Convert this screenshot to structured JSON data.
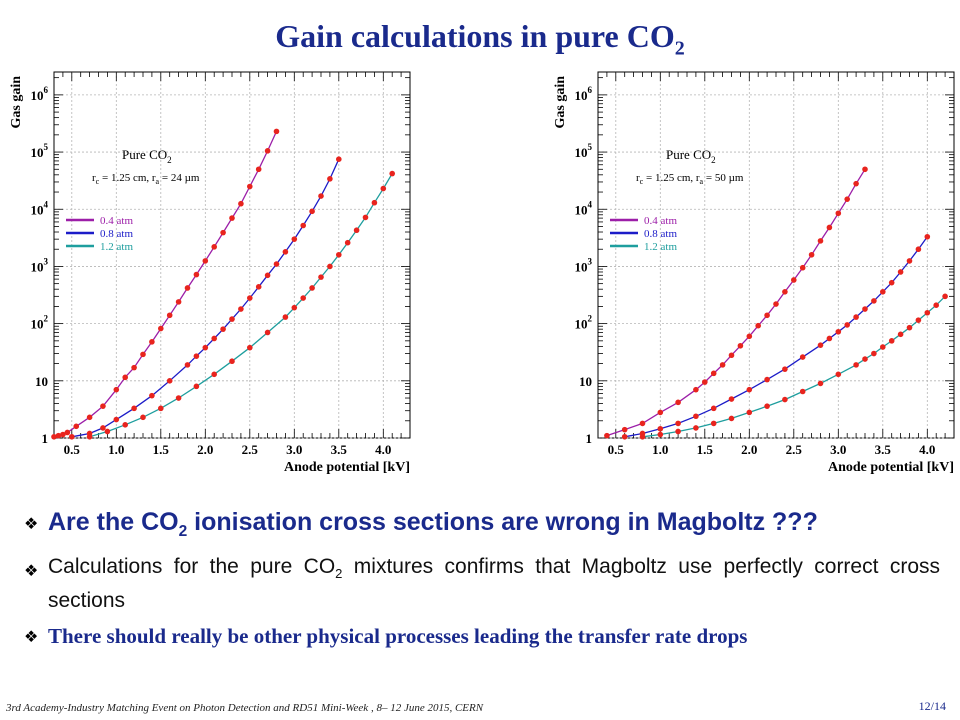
{
  "title": {
    "main": "Gain calculations in pure CO",
    "sub": "2"
  },
  "chart_data": [
    {
      "type": "scatter",
      "xlabel": "Anode potential [kV]",
      "ylabel": "Gas gain",
      "xlim": [
        0.3,
        4.3
      ],
      "ylim_log10": [
        0,
        6.4
      ],
      "log_y": true,
      "x_ticks": [
        "0.5",
        "1.0",
        "1.5",
        "2.0",
        "2.5",
        "3.0",
        "3.5",
        "4.0"
      ],
      "y_ticks": [
        {
          "base": "1",
          "exp": ""
        },
        {
          "base": "10",
          "exp": ""
        },
        {
          "base": "10",
          "exp": "2"
        },
        {
          "base": "10",
          "exp": "3"
        },
        {
          "base": "10",
          "exp": "4"
        },
        {
          "base": "10",
          "exp": "5"
        },
        {
          "base": "10",
          "exp": "6"
        }
      ],
      "grid": true,
      "legend": "left",
      "annotation": {
        "line1": "Pure CO",
        "line1_sub": "2",
        "line2": "r",
        "line2_sub_c": "c",
        "line2_mid": " = 1.25 cm, r",
        "line2_sub_a": "a",
        "line2_end": " = 24 µm"
      },
      "series": [
        {
          "name": "0.4 atm",
          "color": "#9c1ea8",
          "x": [
            0.3,
            0.35,
            0.4,
            0.45,
            0.55,
            0.7,
            0.85,
            1.0,
            1.1,
            1.2,
            1.3,
            1.4,
            1.5,
            1.6,
            1.7,
            1.8,
            1.9,
            2.0,
            2.1,
            2.2,
            2.3,
            2.4,
            2.5,
            2.6,
            2.7,
            2.8
          ],
          "y": [
            1.05,
            1.1,
            1.15,
            1.25,
            1.6,
            2.3,
            3.6,
            7,
            11.5,
            17,
            29,
            48,
            82,
            140,
            240,
            420,
            720,
            1250,
            2200,
            3900,
            7000,
            12500,
            25000,
            50000,
            105000,
            230000
          ]
        },
        {
          "name": "0.8 atm",
          "color": "#1c1cc8",
          "x": [
            0.5,
            0.7,
            0.85,
            1.0,
            1.2,
            1.4,
            1.6,
            1.8,
            1.9,
            2.0,
            2.1,
            2.2,
            2.3,
            2.4,
            2.5,
            2.6,
            2.7,
            2.8,
            2.9,
            3.0,
            3.1,
            3.2,
            3.3,
            3.4,
            3.5
          ],
          "y": [
            1.05,
            1.2,
            1.5,
            2.1,
            3.3,
            5.5,
            10,
            19,
            27,
            38,
            55,
            80,
            120,
            180,
            280,
            440,
            700,
            1100,
            1800,
            3000,
            5200,
            9200,
            17000,
            34000,
            75000
          ]
        },
        {
          "name": "1.2 atm",
          "color": "#1e9e9e",
          "x": [
            0.7,
            0.9,
            1.1,
            1.3,
            1.5,
            1.7,
            1.9,
            2.1,
            2.3,
            2.5,
            2.7,
            2.9,
            3.0,
            3.1,
            3.2,
            3.3,
            3.4,
            3.5,
            3.6,
            3.7,
            3.8,
            3.9,
            4.0,
            4.1
          ],
          "y": [
            1.05,
            1.3,
            1.7,
            2.3,
            3.3,
            5,
            8,
            13,
            22,
            38,
            70,
            130,
            190,
            280,
            420,
            650,
            1000,
            1600,
            2600,
            4300,
            7200,
            13000,
            23000,
            42000
          ]
        }
      ]
    },
    {
      "type": "scatter",
      "xlabel": "Anode potential [kV]",
      "ylabel": "Gas gain",
      "xlim": [
        0.3,
        4.3
      ],
      "ylim_log10": [
        0,
        6.4
      ],
      "log_y": true,
      "x_ticks": [
        "0.5",
        "1.0",
        "1.5",
        "2.0",
        "2.5",
        "3.0",
        "3.5",
        "4.0"
      ],
      "y_ticks": [
        {
          "base": "1",
          "exp": ""
        },
        {
          "base": "10",
          "exp": ""
        },
        {
          "base": "10",
          "exp": "2"
        },
        {
          "base": "10",
          "exp": "3"
        },
        {
          "base": "10",
          "exp": "4"
        },
        {
          "base": "10",
          "exp": "5"
        },
        {
          "base": "10",
          "exp": "6"
        }
      ],
      "grid": true,
      "legend": "left",
      "annotation": {
        "line1": "Pure CO",
        "line1_sub": "2",
        "line2": "r",
        "line2_sub_c": "c",
        "line2_mid": " = 1.25 cm, r",
        "line2_sub_a": "a",
        "line2_end": " = 50 µm"
      },
      "series": [
        {
          "name": "0.4 atm",
          "color": "#9c1ea8",
          "x": [
            0.4,
            0.6,
            0.8,
            1.0,
            1.2,
            1.4,
            1.5,
            1.6,
            1.7,
            1.8,
            1.9,
            2.0,
            2.1,
            2.2,
            2.3,
            2.4,
            2.5,
            2.6,
            2.7,
            2.8,
            2.9,
            3.0,
            3.1,
            3.2,
            3.3
          ],
          "y": [
            1.1,
            1.4,
            1.8,
            2.8,
            4.2,
            7,
            9.5,
            13.5,
            19,
            28,
            41,
            60,
            92,
            140,
            220,
            360,
            580,
            950,
            1600,
            2800,
            4800,
            8500,
            15000,
            28000,
            50000
          ]
        },
        {
          "name": "0.8 atm",
          "color": "#1c1cc8",
          "x": [
            0.6,
            0.8,
            1.0,
            1.2,
            1.4,
            1.6,
            1.8,
            2.0,
            2.2,
            2.4,
            2.6,
            2.8,
            2.9,
            3.0,
            3.1,
            3.2,
            3.3,
            3.4,
            3.5,
            3.6,
            3.7,
            3.8,
            3.9,
            4.0
          ],
          "y": [
            1.05,
            1.2,
            1.45,
            1.8,
            2.4,
            3.3,
            4.8,
            7,
            10.5,
            16,
            26,
            42,
            55,
            72,
            95,
            130,
            180,
            250,
            360,
            520,
            800,
            1250,
            2000,
            3300
          ]
        },
        {
          "name": "1.2 atm",
          "color": "#1e9e9e",
          "x": [
            0.8,
            1.0,
            1.2,
            1.4,
            1.6,
            1.8,
            2.0,
            2.2,
            2.4,
            2.6,
            2.8,
            3.0,
            3.2,
            3.3,
            3.4,
            3.5,
            3.6,
            3.7,
            3.8,
            3.9,
            4.0,
            4.1,
            4.2
          ],
          "y": [
            1.05,
            1.15,
            1.3,
            1.5,
            1.8,
            2.2,
            2.8,
            3.6,
            4.7,
            6.5,
            9,
            13,
            19,
            24,
            30,
            39,
            50,
            65,
            85,
            115,
            155,
            210,
            300
          ]
        }
      ]
    }
  ],
  "bullets": [
    {
      "pre": "Are the CO",
      "sub": "2",
      "post": " ionisation cross sections are wrong in Magboltz ???"
    },
    {
      "pre": "Calculations for the pure CO",
      "sub": "2",
      "post": " mixtures confirms that Magboltz use perfectly correct cross sections"
    },
    {
      "text": "There should really be other physical processes leading the transfer rate drops"
    }
  ],
  "footer": "3rd Academy-Industry Matching Event on Photon Detection and RD51 Mini-Week , 8– 12 June 2015, CERN",
  "page_number": "12/14"
}
